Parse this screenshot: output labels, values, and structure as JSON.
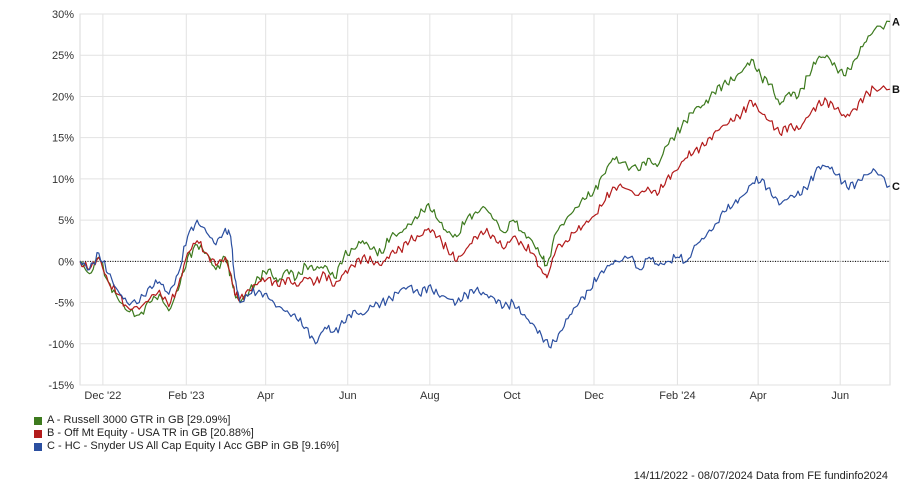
{
  "chart_data": {
    "type": "line",
    "ylim": [
      -15,
      30
    ],
    "y_ticks": [
      "30%",
      "25%",
      "20%",
      "15%",
      "10%",
      "5%",
      "0%",
      "-5%",
      "-10%",
      "-15%"
    ],
    "x_range": [
      "2022-11-14",
      "2024-07-08"
    ],
    "x_ticks": [
      {
        "date": "2022-12-01",
        "label": "Dec '22"
      },
      {
        "date": "2023-02-01",
        "label": "Feb '23"
      },
      {
        "date": "2023-04-01",
        "label": "Apr"
      },
      {
        "date": "2023-06-01",
        "label": "Jun"
      },
      {
        "date": "2023-08-01",
        "label": "Aug"
      },
      {
        "date": "2023-10-01",
        "label": "Oct"
      },
      {
        "date": "2023-12-01",
        "label": "Dec"
      },
      {
        "date": "2024-02-01",
        "label": "Feb '24"
      },
      {
        "date": "2024-04-01",
        "label": "Apr"
      },
      {
        "date": "2024-06-01",
        "label": "Jun"
      }
    ],
    "grid": true,
    "zero_line": "dotted",
    "legend_position": "bottom-left",
    "series": [
      {
        "name": "A - Russell 3000 GTR in GB [29.09%]",
        "end_label": "A",
        "color": "#3d7a1e",
        "points": [
          [
            "2022-11-14",
            0
          ],
          [
            "2022-11-21",
            -1.5
          ],
          [
            "2022-11-28",
            0.5
          ],
          [
            "2022-12-05",
            -2.5
          ],
          [
            "2022-12-12",
            -4.5
          ],
          [
            "2022-12-19",
            -6.0
          ],
          [
            "2022-12-28",
            -6.5
          ],
          [
            "2023-01-05",
            -5.0
          ],
          [
            "2023-01-12",
            -4.0
          ],
          [
            "2023-01-19",
            -6.0
          ],
          [
            "2023-01-26",
            -3.5
          ],
          [
            "2023-02-02",
            0.5
          ],
          [
            "2023-02-09",
            2.0
          ],
          [
            "2023-02-16",
            1.0
          ],
          [
            "2023-02-23",
            -1.0
          ],
          [
            "2023-03-02",
            0.5
          ],
          [
            "2023-03-06",
            -1.5
          ],
          [
            "2023-03-09",
            -4.0
          ],
          [
            "2023-03-13",
            -5.0
          ],
          [
            "2023-03-20",
            -3.5
          ],
          [
            "2023-03-27",
            -2.0
          ],
          [
            "2023-04-03",
            -1.0
          ],
          [
            "2023-04-10",
            -2.5
          ],
          [
            "2023-04-17",
            -1.0
          ],
          [
            "2023-04-24",
            -2.0
          ],
          [
            "2023-05-01",
            -0.5
          ],
          [
            "2023-05-08",
            -1.0
          ],
          [
            "2023-05-15",
            -0.5
          ],
          [
            "2023-05-22",
            -2.0
          ],
          [
            "2023-05-29",
            0.5
          ],
          [
            "2023-06-05",
            1.5
          ],
          [
            "2023-06-12",
            2.5
          ],
          [
            "2023-06-19",
            1.5
          ],
          [
            "2023-06-26",
            1.0
          ],
          [
            "2023-07-03",
            3.0
          ],
          [
            "2023-07-10",
            3.5
          ],
          [
            "2023-07-17",
            4.5
          ],
          [
            "2023-07-24",
            5.5
          ],
          [
            "2023-07-31",
            7.0
          ],
          [
            "2023-08-07",
            5.0
          ],
          [
            "2023-08-14",
            3.5
          ],
          [
            "2023-08-21",
            3.0
          ],
          [
            "2023-08-28",
            5.0
          ],
          [
            "2023-09-04",
            6.0
          ],
          [
            "2023-09-11",
            6.5
          ],
          [
            "2023-09-18",
            5.0
          ],
          [
            "2023-09-25",
            3.5
          ],
          [
            "2023-10-02",
            5.0
          ],
          [
            "2023-10-09",
            3.5
          ],
          [
            "2023-10-16",
            2.5
          ],
          [
            "2023-10-23",
            0.5
          ],
          [
            "2023-10-27",
            -0.5
          ],
          [
            "2023-11-03",
            3.5
          ],
          [
            "2023-11-10",
            5.0
          ],
          [
            "2023-11-17",
            6.5
          ],
          [
            "2023-11-24",
            7.5
          ],
          [
            "2023-12-01",
            8.5
          ],
          [
            "2023-12-08",
            10.5
          ],
          [
            "2023-12-15",
            12.5
          ],
          [
            "2023-12-22",
            12.0
          ],
          [
            "2024-01-03",
            11.0
          ],
          [
            "2024-01-10",
            12.5
          ],
          [
            "2024-01-17",
            11.5
          ],
          [
            "2024-01-24",
            14.0
          ],
          [
            "2024-01-31",
            15.5
          ],
          [
            "2024-02-07",
            17.0
          ],
          [
            "2024-02-14",
            18.5
          ],
          [
            "2024-02-21",
            19.0
          ],
          [
            "2024-02-28",
            20.5
          ],
          [
            "2024-03-06",
            21.5
          ],
          [
            "2024-03-13",
            22.0
          ],
          [
            "2024-03-20",
            23.0
          ],
          [
            "2024-03-27",
            24.5
          ],
          [
            "2024-04-03",
            22.5
          ],
          [
            "2024-04-10",
            21.5
          ],
          [
            "2024-04-17",
            19.0
          ],
          [
            "2024-04-24",
            20.5
          ],
          [
            "2024-05-01",
            20.0
          ],
          [
            "2024-05-08",
            22.5
          ],
          [
            "2024-05-15",
            24.5
          ],
          [
            "2024-05-22",
            25.0
          ],
          [
            "2024-05-29",
            23.5
          ],
          [
            "2024-06-05",
            22.5
          ],
          [
            "2024-06-12",
            24.5
          ],
          [
            "2024-06-19",
            26.5
          ],
          [
            "2024-06-26",
            28.0
          ],
          [
            "2024-07-08",
            29.09
          ]
        ]
      },
      {
        "name": "B - Off Mt Equity - USA TR in GB [20.88%]",
        "end_label": "B",
        "color": "#b31b1b",
        "points": [
          [
            "2022-11-14",
            0
          ],
          [
            "2022-11-21",
            -1.0
          ],
          [
            "2022-11-28",
            0.5
          ],
          [
            "2022-12-05",
            -2.5
          ],
          [
            "2022-12-12",
            -4.0
          ],
          [
            "2022-12-19",
            -5.5
          ],
          [
            "2022-12-28",
            -5.8
          ],
          [
            "2023-01-05",
            -4.5
          ],
          [
            "2023-01-12",
            -3.5
          ],
          [
            "2023-01-19",
            -5.5
          ],
          [
            "2023-01-26",
            -3.0
          ],
          [
            "2023-02-02",
            1.0
          ],
          [
            "2023-02-09",
            2.5
          ],
          [
            "2023-02-16",
            1.0
          ],
          [
            "2023-02-23",
            -0.5
          ],
          [
            "2023-03-02",
            0.5
          ],
          [
            "2023-03-06",
            -1.5
          ],
          [
            "2023-03-09",
            -4.0
          ],
          [
            "2023-03-13",
            -4.5
          ],
          [
            "2023-03-20",
            -3.5
          ],
          [
            "2023-03-27",
            -2.5
          ],
          [
            "2023-04-03",
            -2.0
          ],
          [
            "2023-04-10",
            -3.0
          ],
          [
            "2023-04-17",
            -2.0
          ],
          [
            "2023-04-24",
            -3.0
          ],
          [
            "2023-05-01",
            -2.0
          ],
          [
            "2023-05-08",
            -2.5
          ],
          [
            "2023-05-15",
            -1.5
          ],
          [
            "2023-05-22",
            -3.0
          ],
          [
            "2023-05-29",
            -1.5
          ],
          [
            "2023-06-05",
            -0.5
          ],
          [
            "2023-06-12",
            0.5
          ],
          [
            "2023-06-19",
            0.0
          ],
          [
            "2023-06-26",
            -0.5
          ],
          [
            "2023-07-03",
            1.0
          ],
          [
            "2023-07-10",
            1.5
          ],
          [
            "2023-07-17",
            2.5
          ],
          [
            "2023-07-24",
            3.0
          ],
          [
            "2023-07-31",
            4.0
          ],
          [
            "2023-08-07",
            3.0
          ],
          [
            "2023-08-14",
            1.5
          ],
          [
            "2023-08-21",
            0.0
          ],
          [
            "2023-08-28",
            1.5
          ],
          [
            "2023-09-04",
            3.0
          ],
          [
            "2023-09-11",
            3.5
          ],
          [
            "2023-09-18",
            3.0
          ],
          [
            "2023-09-25",
            1.5
          ],
          [
            "2023-10-02",
            3.0
          ],
          [
            "2023-10-09",
            2.0
          ],
          [
            "2023-10-16",
            1.0
          ],
          [
            "2023-10-23",
            -1.0
          ],
          [
            "2023-10-27",
            -2.0
          ],
          [
            "2023-11-03",
            1.5
          ],
          [
            "2023-11-10",
            2.5
          ],
          [
            "2023-11-17",
            3.5
          ],
          [
            "2023-11-24",
            4.5
          ],
          [
            "2023-12-01",
            5.5
          ],
          [
            "2023-12-08",
            7.0
          ],
          [
            "2023-12-15",
            9.0
          ],
          [
            "2023-12-22",
            9.0
          ],
          [
            "2024-01-03",
            8.0
          ],
          [
            "2024-01-10",
            9.0
          ],
          [
            "2024-01-17",
            8.0
          ],
          [
            "2024-01-24",
            10.0
          ],
          [
            "2024-01-31",
            11.0
          ],
          [
            "2024-02-07",
            12.5
          ],
          [
            "2024-02-14",
            13.5
          ],
          [
            "2024-02-21",
            14.0
          ],
          [
            "2024-02-28",
            15.5
          ],
          [
            "2024-03-06",
            16.5
          ],
          [
            "2024-03-13",
            17.0
          ],
          [
            "2024-03-20",
            18.0
          ],
          [
            "2024-03-27",
            19.5
          ],
          [
            "2024-04-03",
            18.0
          ],
          [
            "2024-04-10",
            17.0
          ],
          [
            "2024-04-17",
            15.5
          ],
          [
            "2024-04-24",
            16.5
          ],
          [
            "2024-05-01",
            16.0
          ],
          [
            "2024-05-08",
            17.5
          ],
          [
            "2024-05-15",
            19.0
          ],
          [
            "2024-05-22",
            19.5
          ],
          [
            "2024-05-29",
            18.5
          ],
          [
            "2024-06-05",
            17.5
          ],
          [
            "2024-06-12",
            18.5
          ],
          [
            "2024-06-19",
            20.0
          ],
          [
            "2024-06-26",
            21.0
          ],
          [
            "2024-07-08",
            20.88
          ]
        ]
      },
      {
        "name": "C - HC - Snyder US All Cap Equity I Acc GBP in GB [9.16%]",
        "end_label": "C",
        "color": "#2b4fa0",
        "points": [
          [
            "2022-11-14",
            0
          ],
          [
            "2022-11-21",
            -1.0
          ],
          [
            "2022-11-28",
            1.0
          ],
          [
            "2022-12-05",
            -1.5
          ],
          [
            "2022-12-12",
            -3.5
          ],
          [
            "2022-12-19",
            -5.0
          ],
          [
            "2022-12-28",
            -5.0
          ],
          [
            "2023-01-05",
            -3.0
          ],
          [
            "2023-01-12",
            -2.5
          ],
          [
            "2023-01-19",
            -4.0
          ],
          [
            "2023-01-26",
            -1.5
          ],
          [
            "2023-02-02",
            3.0
          ],
          [
            "2023-02-09",
            5.0
          ],
          [
            "2023-02-16",
            3.5
          ],
          [
            "2023-02-23",
            2.0
          ],
          [
            "2023-03-02",
            4.0
          ],
          [
            "2023-03-06",
            3.0
          ],
          [
            "2023-03-09",
            -2.0
          ],
          [
            "2023-03-13",
            -5.0
          ],
          [
            "2023-03-20",
            -4.0
          ],
          [
            "2023-03-27",
            -3.5
          ],
          [
            "2023-04-03",
            -4.5
          ],
          [
            "2023-04-10",
            -5.5
          ],
          [
            "2023-04-17",
            -6.0
          ],
          [
            "2023-04-24",
            -7.0
          ],
          [
            "2023-05-01",
            -8.0
          ],
          [
            "2023-05-08",
            -10.0
          ],
          [
            "2023-05-15",
            -8.0
          ],
          [
            "2023-05-22",
            -8.5
          ],
          [
            "2023-05-29",
            -7.5
          ],
          [
            "2023-06-05",
            -6.0
          ],
          [
            "2023-06-12",
            -6.5
          ],
          [
            "2023-06-19",
            -5.5
          ],
          [
            "2023-06-26",
            -5.0
          ],
          [
            "2023-07-03",
            -4.5
          ],
          [
            "2023-07-10",
            -3.5
          ],
          [
            "2023-07-17",
            -3.0
          ],
          [
            "2023-07-24",
            -4.0
          ],
          [
            "2023-07-31",
            -3.0
          ],
          [
            "2023-08-07",
            -4.0
          ],
          [
            "2023-08-14",
            -4.5
          ],
          [
            "2023-08-21",
            -5.0
          ],
          [
            "2023-08-28",
            -4.0
          ],
          [
            "2023-09-04",
            -3.5
          ],
          [
            "2023-09-11",
            -4.0
          ],
          [
            "2023-09-18",
            -4.5
          ],
          [
            "2023-09-25",
            -5.5
          ],
          [
            "2023-10-02",
            -5.0
          ],
          [
            "2023-10-09",
            -6.5
          ],
          [
            "2023-10-16",
            -7.5
          ],
          [
            "2023-10-23",
            -9.0
          ],
          [
            "2023-10-30",
            -10.5
          ],
          [
            "2023-11-06",
            -8.5
          ],
          [
            "2023-11-13",
            -6.5
          ],
          [
            "2023-11-20",
            -5.0
          ],
          [
            "2023-11-27",
            -3.5
          ],
          [
            "2023-12-04",
            -2.0
          ],
          [
            "2023-12-11",
            -0.5
          ],
          [
            "2023-12-18",
            0.0
          ],
          [
            "2023-12-28",
            0.5
          ],
          [
            "2024-01-04",
            -1.0
          ],
          [
            "2024-01-11",
            0.5
          ],
          [
            "2024-01-18",
            -0.5
          ],
          [
            "2024-01-25",
            0.0
          ],
          [
            "2024-02-01",
            0.5
          ],
          [
            "2024-02-08",
            0.0
          ],
          [
            "2024-02-15",
            2.0
          ],
          [
            "2024-02-22",
            3.0
          ],
          [
            "2024-02-29",
            4.5
          ],
          [
            "2024-03-07",
            6.0
          ],
          [
            "2024-03-14",
            7.0
          ],
          [
            "2024-03-21",
            8.0
          ],
          [
            "2024-03-28",
            9.5
          ],
          [
            "2024-04-04",
            10.0
          ],
          [
            "2024-04-11",
            8.0
          ],
          [
            "2024-04-18",
            7.0
          ],
          [
            "2024-04-25",
            8.0
          ],
          [
            "2024-05-02",
            8.0
          ],
          [
            "2024-05-09",
            9.5
          ],
          [
            "2024-05-16",
            11.5
          ],
          [
            "2024-05-23",
            11.5
          ],
          [
            "2024-05-30",
            10.5
          ],
          [
            "2024-06-06",
            9.0
          ],
          [
            "2024-06-13",
            9.5
          ],
          [
            "2024-06-20",
            10.5
          ],
          [
            "2024-06-27",
            11.0
          ],
          [
            "2024-07-08",
            9.16
          ]
        ]
      }
    ]
  },
  "footer": {
    "range": "14/11/2022 - 08/07/2024",
    "source": "Data from FE fundinfo2024"
  }
}
